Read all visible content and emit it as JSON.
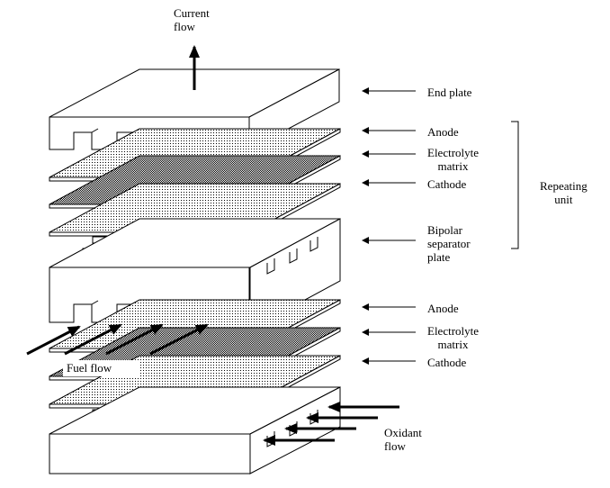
{
  "labels": {
    "current_flow": "Current\nflow",
    "end_plate": "End plate",
    "anode_1": "Anode",
    "electrolyte_1": "Electrolyte\nmatrix",
    "cathode_1": "Cathode",
    "bipolar": "Bipolar\nseparator\nplate",
    "anode_2": "Anode",
    "electrolyte_2": "Electrolyte\nmatrix",
    "cathode_2": "Cathode",
    "repeating_unit": "Repeating\nunit",
    "fuel_flow": "Fuel flow",
    "oxidant_flow": "Oxidant\nflow"
  },
  "colors": {
    "line": "#000000",
    "fill": "#ffffff",
    "stipple": "#000000"
  }
}
